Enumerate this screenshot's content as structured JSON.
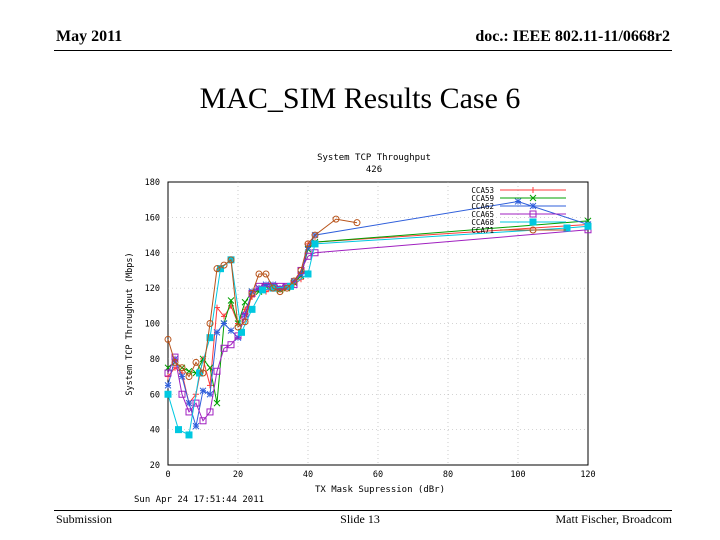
{
  "header": {
    "date": "May 2011",
    "doc": "doc.: IEEE 802.11-11/0668r2"
  },
  "slide_title": "MAC_SIM Results Case 6",
  "footer": {
    "left": "Submission",
    "center": "Slide 13",
    "right": "Matt Fischer, Broadcom"
  },
  "chart_data": {
    "type": "line",
    "title": "System TCP Throughput",
    "subtitle": "426",
    "xlabel": "TX Mask Supression (dBr)",
    "ylabel": "System TCP Throughput (Mbps)",
    "xlim": [
      0,
      120
    ],
    "ylim": [
      20,
      180
    ],
    "xticks": [
      0,
      20,
      40,
      60,
      80,
      100,
      120
    ],
    "yticks": [
      20,
      40,
      60,
      80,
      100,
      120,
      140,
      160,
      180
    ],
    "grid": true,
    "legend_position": "top-right",
    "timestamp": "Sun Apr 24 17:51:44 2011",
    "series": [
      {
        "name": "CCA53",
        "color": "#ff3b3b",
        "marker": "plus",
        "x": [
          0,
          2,
          4,
          6,
          8,
          10,
          12,
          14,
          16,
          18,
          20,
          22,
          24,
          26,
          28,
          30,
          32,
          34,
          36,
          38,
          40,
          42,
          120
        ],
        "y": [
          70,
          75,
          72,
          55,
          60,
          80,
          65,
          109,
          104,
          110,
          100,
          108,
          115,
          120,
          118,
          120,
          119,
          121,
          122,
          125,
          145,
          146,
          156
        ]
      },
      {
        "name": "CCA59",
        "color": "#00a000",
        "marker": "x",
        "x": [
          0,
          2,
          4,
          6,
          8,
          10,
          12,
          14,
          16,
          18,
          20,
          22,
          24,
          26,
          28,
          30,
          32,
          34,
          36,
          38,
          40,
          42,
          120
        ],
        "y": [
          75,
          78,
          75,
          73,
          72,
          80,
          75,
          55,
          100,
          113,
          100,
          112,
          118,
          118,
          121,
          121,
          119,
          120,
          123,
          127,
          142,
          146,
          158
        ]
      },
      {
        "name": "CCA62",
        "color": "#2f5fdb",
        "marker": "star",
        "x": [
          0,
          2,
          4,
          6,
          8,
          10,
          12,
          14,
          16,
          18,
          20,
          22,
          24,
          26,
          28,
          30,
          32,
          34,
          36,
          38,
          40,
          42,
          100,
          120
        ],
        "y": [
          65,
          80,
          70,
          55,
          42,
          62,
          60,
          95,
          100,
          96,
          92,
          105,
          118,
          120,
          122,
          122,
          120,
          121,
          124,
          128,
          143,
          150,
          169,
          156
        ]
      },
      {
        "name": "CCA65",
        "color": "#a020c0",
        "marker": "square",
        "x": [
          0,
          2,
          4,
          6,
          8,
          10,
          12,
          14,
          16,
          18,
          20,
          22,
          24,
          26,
          28,
          30,
          32,
          34,
          36,
          38,
          40,
          42,
          120
        ],
        "y": [
          72,
          81,
          60,
          50,
          55,
          45,
          50,
          73,
          86,
          88,
          93,
          104,
          117,
          121,
          121,
          121,
          121,
          121,
          122,
          130,
          138,
          140,
          153
        ]
      },
      {
        "name": "CCA68",
        "color": "#00c8e0",
        "marker": "filled-square",
        "x": [
          0,
          3,
          6,
          9,
          12,
          15,
          18,
          21,
          24,
          27,
          30,
          35,
          40,
          42,
          114,
          120
        ],
        "y": [
          60,
          40,
          37,
          72,
          92,
          131,
          136,
          95,
          108,
          119,
          120,
          121,
          128,
          145,
          154,
          155
        ]
      },
      {
        "name": "CCA71",
        "color": "#b8531a",
        "marker": "circle",
        "x": [
          0,
          2,
          4,
          6,
          8,
          10,
          12,
          14,
          16,
          18,
          20,
          22,
          24,
          26,
          28,
          30,
          32,
          34,
          36,
          38,
          40,
          42,
          48,
          54
        ],
        "y": [
          91,
          78,
          75,
          70,
          78,
          72,
          100,
          131,
          133,
          136,
          98,
          101,
          117,
          128,
          128,
          120,
          118,
          120,
          124,
          130,
          145,
          150,
          159,
          157
        ]
      }
    ]
  }
}
